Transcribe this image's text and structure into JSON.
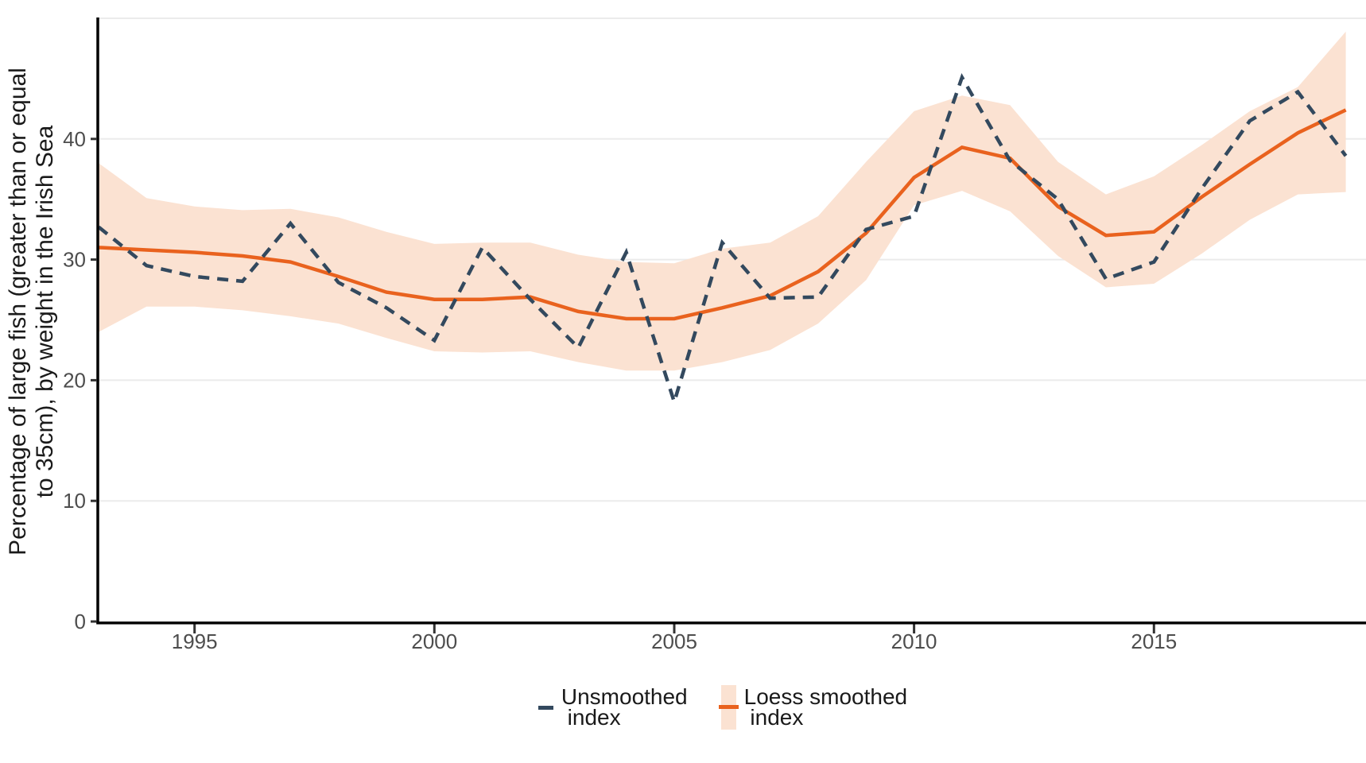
{
  "figure": {
    "y_axis_title_line1": "Percentage of large fish (greater than or equal",
    "y_axis_title_line2": "to 35cm), by weight in the Irish Sea"
  },
  "legend": {
    "unsmoothed_label": "Unsmoothed\n index",
    "loess_label": "Loess smoothed\n index"
  },
  "colors": {
    "unsmoothed_line": "#33495e",
    "loess_line": "#e9621e",
    "confidence_band": "#fbe2d2",
    "gridline": "#ebebeb",
    "axis_line": "#000000",
    "tick_mark": "#333333",
    "tick_label": "#4d4d4d"
  },
  "chart_data": {
    "type": "line",
    "title": "",
    "xlabel": "",
    "ylabel": "Percentage of large fish (greater than or equal to 35cm), by weight in the Irish Sea",
    "x": [
      1993,
      1994,
      1995,
      1996,
      1997,
      1998,
      1999,
      2000,
      2001,
      2002,
      2003,
      2004,
      2005,
      2006,
      2007,
      2008,
      2009,
      2010,
      2011,
      2012,
      2013,
      2014,
      2015,
      2016,
      2017,
      2018,
      2019
    ],
    "series": [
      {
        "name": "Unsmoothed index",
        "style": "dashed",
        "color": "#33495e",
        "values": [
          32.7,
          29.5,
          28.6,
          28.2,
          33.0,
          28.1,
          26.0,
          23.3,
          31.0,
          26.7,
          22.7,
          30.6,
          18.2,
          31.4,
          26.8,
          26.9,
          32.5,
          33.6,
          45.1,
          38.2,
          35.0,
          28.4,
          29.8,
          35.9,
          41.5,
          43.9,
          38.6
        ]
      },
      {
        "name": "Loess smoothed index",
        "style": "solid",
        "color": "#e9621e",
        "values": [
          31.0,
          30.8,
          30.6,
          30.3,
          29.8,
          28.6,
          27.3,
          26.7,
          26.7,
          26.9,
          25.7,
          25.1,
          25.1,
          26.0,
          27.0,
          29.0,
          32.2,
          36.8,
          39.3,
          38.4,
          34.4,
          32.0,
          32.3,
          35.2,
          37.9,
          40.5,
          42.4
        ]
      }
    ],
    "band": {
      "series": "Loess smoothed index",
      "color": "#fbe2d2",
      "lower": [
        24.0,
        26.1,
        26.1,
        25.8,
        25.3,
        24.7,
        23.5,
        22.4,
        22.3,
        22.4,
        21.5,
        20.8,
        20.8,
        21.5,
        22.5,
        24.7,
        28.3,
        34.5,
        35.7,
        34.0,
        30.3,
        27.7,
        28.0,
        30.5,
        33.3,
        35.4,
        35.6
      ],
      "upper": [
        38.0,
        35.1,
        34.4,
        34.1,
        34.2,
        33.5,
        32.3,
        31.3,
        31.4,
        31.4,
        30.4,
        29.8,
        29.7,
        30.9,
        31.4,
        33.6,
        38.1,
        42.3,
        43.6,
        42.8,
        38.1,
        35.4,
        36.9,
        39.5,
        42.3,
        44.3,
        48.9
      ]
    },
    "x_ticks": [
      1995,
      2000,
      2005,
      2010,
      2015
    ],
    "y_ticks": [
      0,
      10,
      20,
      30,
      40
    ],
    "y_gridlines": [
      10,
      20,
      30,
      40,
      50
    ],
    "xlim": [
      1993,
      2019.4
    ],
    "ylim": [
      0,
      50
    ],
    "grid": "horizontal-only",
    "legend_position": "bottom"
  }
}
